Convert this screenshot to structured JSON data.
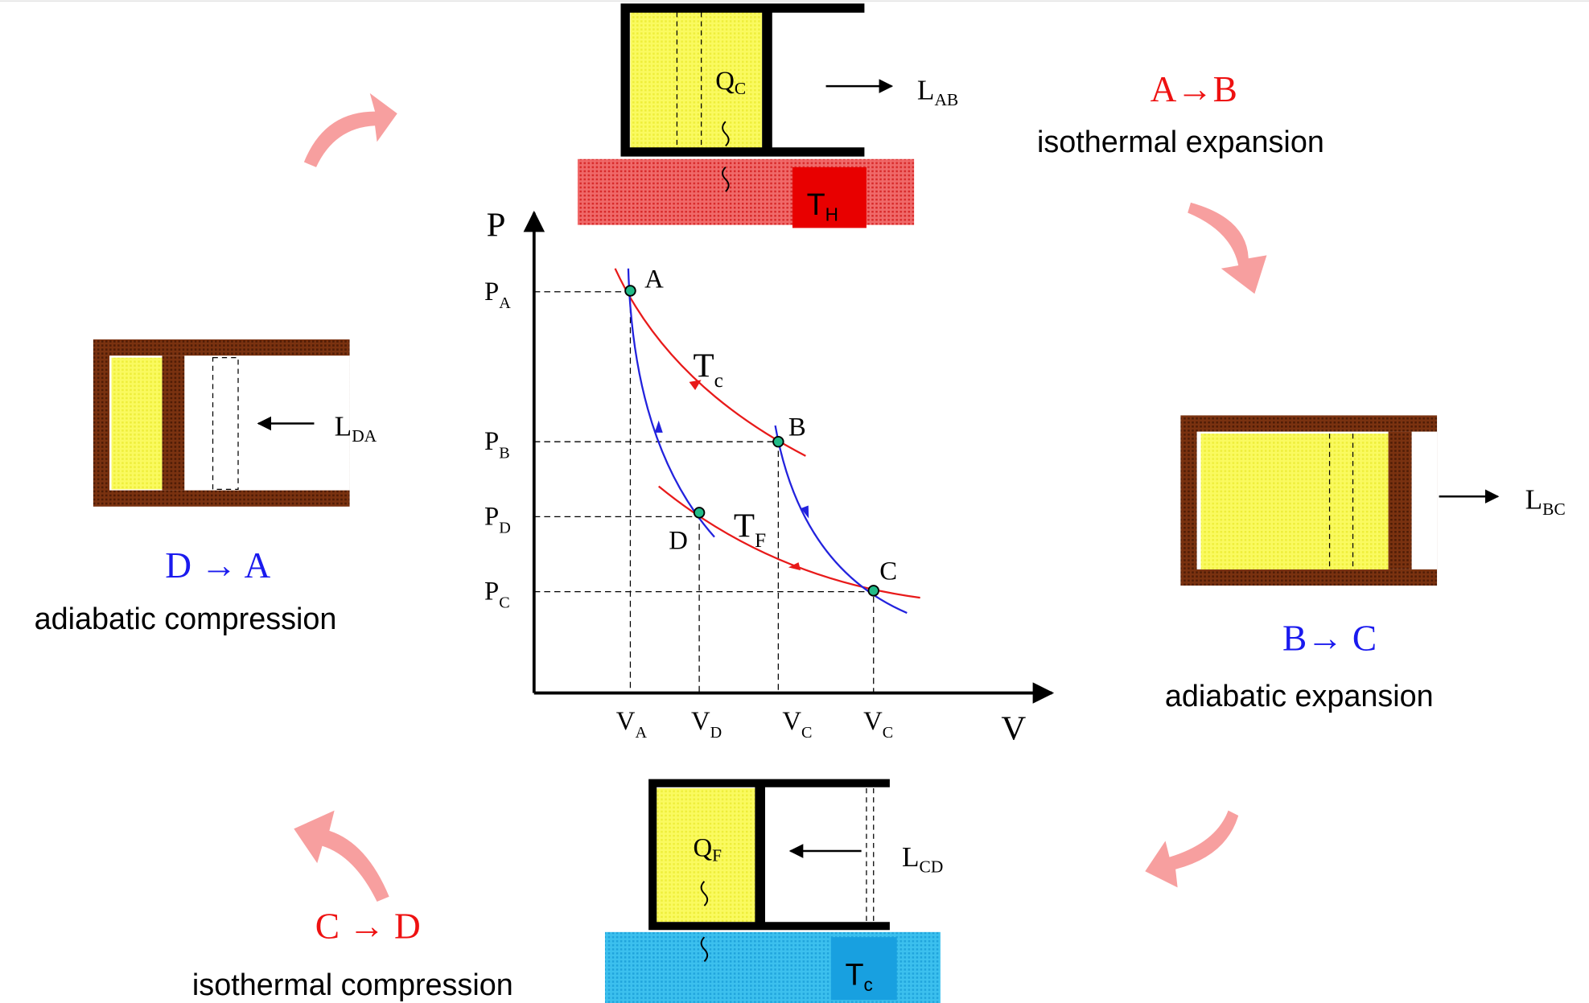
{
  "pistons": {
    "top": {
      "heat": {
        "base": "Q",
        "sub": "C"
      },
      "work": {
        "base": "L",
        "sub": "AB"
      },
      "reservoir": {
        "base": "T",
        "sub": "H"
      }
    },
    "right": {
      "work": {
        "base": "L",
        "sub": "BC"
      }
    },
    "bottom": {
      "heat": {
        "base": "Q",
        "sub": "F"
      },
      "work": {
        "base": "L",
        "sub": "CD"
      },
      "reservoir": {
        "base": "T",
        "sub": "c"
      }
    },
    "left": {
      "work": {
        "base": "L",
        "sub": "DA"
      }
    }
  },
  "processes": [
    {
      "arrow": "A→B",
      "name": "isothermal expansion"
    },
    {
      "arrow": "B→ C",
      "name": "adiabatic expansion"
    },
    {
      "arrow": "C → D",
      "name": "isothermal compression"
    },
    {
      "arrow": "D → A",
      "name": "adiabatic compression"
    }
  ],
  "graph": {
    "y_axis": "P",
    "x_axis": "V",
    "p_labels": [
      {
        "base": "P",
        "sub": "A"
      },
      {
        "base": "P",
        "sub": "B"
      },
      {
        "base": "P",
        "sub": "D"
      },
      {
        "base": "P",
        "sub": "C"
      }
    ],
    "v_labels": [
      {
        "base": "V",
        "sub": "A"
      },
      {
        "base": "V",
        "sub": "D"
      },
      {
        "base": "V",
        "sub": "C"
      },
      {
        "base": "V",
        "sub": "C"
      }
    ],
    "points": [
      "A",
      "B",
      "C",
      "D"
    ],
    "isotherms": [
      {
        "base": "T",
        "sub": "c"
      },
      {
        "base": "T",
        "sub": "F"
      }
    ]
  }
}
